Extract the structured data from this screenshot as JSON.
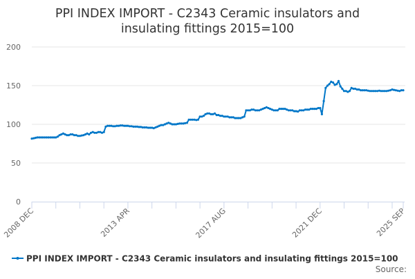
{
  "chart_data": {
    "type": "line",
    "title_line1": "PPI INDEX IMPORT - C2343 Ceramic insulators and",
    "title_line2": "insulating fittings 2015=100",
    "start_month": "2008-12",
    "frequency": "monthly",
    "x_tick_labels": [
      {
        "month_index": 0,
        "label": "2008 DEC"
      },
      {
        "month_index": 52,
        "label": "2013 APR"
      },
      {
        "month_index": 104,
        "label": "2017 AUG"
      },
      {
        "month_index": 156,
        "label": "2021 DEC"
      },
      {
        "month_index": 201,
        "label": "2025 SEP"
      }
    ],
    "y_ticks": [
      0,
      50,
      100,
      150,
      200
    ],
    "ylim": [
      0,
      200
    ],
    "grid": true,
    "legend_position": "bottom",
    "series": [
      {
        "name": "PPI INDEX IMPORT - C2343 Ceramic insulators and insulating fittings 2015=100",
        "color": "#0077c8",
        "values": [
          81.5,
          82,
          82.5,
          83,
          83,
          83,
          83,
          83,
          83,
          83,
          83,
          83,
          83,
          83,
          84,
          86,
          87,
          88,
          87,
          86,
          86,
          87,
          87,
          86,
          86,
          85,
          85,
          85.5,
          86,
          87,
          88,
          87,
          89,
          90,
          89,
          89,
          90,
          90,
          89,
          90,
          97,
          98,
          98,
          98,
          97.5,
          97.5,
          98,
          98,
          98.5,
          98.5,
          98,
          98,
          98,
          97.5,
          97.5,
          97,
          97,
          97,
          96.5,
          96.5,
          96,
          96,
          96,
          95.5,
          95.5,
          95.5,
          95,
          96,
          97,
          98,
          99,
          99,
          100,
          101,
          102,
          101,
          100,
          100,
          100,
          100.5,
          101,
          101,
          101,
          101.5,
          102,
          106,
          106,
          106,
          106,
          105.5,
          106,
          110,
          110,
          111,
          113,
          114,
          114,
          113,
          113,
          114,
          112,
          112,
          111,
          111,
          110,
          110,
          110,
          109,
          109,
          109,
          108,
          108,
          108,
          108,
          109,
          110,
          118,
          118,
          118,
          119,
          119,
          118,
          118,
          118,
          119,
          120,
          121,
          122,
          121,
          120,
          119,
          118,
          118,
          118,
          120,
          120,
          120,
          120,
          119,
          118,
          118,
          118,
          117,
          117,
          116.5,
          118,
          118,
          118,
          119,
          119,
          119,
          120,
          120,
          120,
          120,
          121,
          121,
          113,
          130,
          147,
          150,
          152,
          155,
          154,
          151,
          152,
          156,
          149,
          146,
          143,
          143,
          142,
          143,
          147,
          146,
          146,
          145,
          145,
          144,
          144,
          144,
          144,
          143.5,
          143,
          143,
          143,
          143,
          143,
          143.5,
          143,
          143,
          143,
          143,
          143.5,
          144,
          145,
          144.5,
          144,
          143.5,
          143,
          144,
          144
        ]
      }
    ],
    "source_label": "Source:"
  }
}
